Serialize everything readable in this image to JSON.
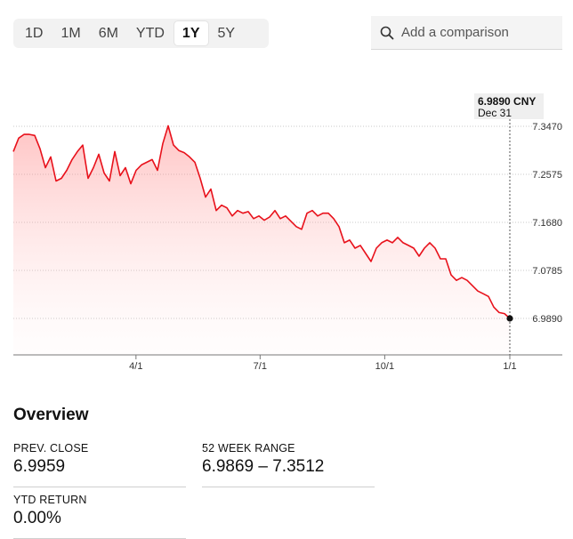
{
  "range_selector": {
    "options": [
      "1D",
      "1M",
      "6M",
      "YTD",
      "1Y",
      "5Y"
    ],
    "selected": "1Y"
  },
  "compare": {
    "placeholder": "Add a comparison",
    "icon": "search-icon"
  },
  "chart_data": {
    "type": "area",
    "title": "",
    "xlabel": "",
    "ylabel": "",
    "x_ticks": [
      "4/1",
      "7/1",
      "10/1",
      "1/1"
    ],
    "y_ticks": [
      6.989,
      7.0785,
      7.168,
      7.2575,
      7.347
    ],
    "y_tick_labels": [
      "6.9890",
      "7.0785",
      "7.1680",
      "7.2575",
      "7.3470"
    ],
    "grid": "horizontal-dotted",
    "line_color": "#e8111b",
    "fill_color": "#ff8a8a",
    "values": [
      7.3,
      7.325,
      7.332,
      7.332,
      7.33,
      7.305,
      7.27,
      7.29,
      7.245,
      7.25,
      7.265,
      7.285,
      7.3,
      7.312,
      7.25,
      7.27,
      7.295,
      7.26,
      7.245,
      7.3,
      7.255,
      7.27,
      7.24,
      7.265,
      7.275,
      7.28,
      7.285,
      7.265,
      7.315,
      7.348,
      7.312,
      7.302,
      7.298,
      7.29,
      7.28,
      7.25,
      7.215,
      7.23,
      7.19,
      7.2,
      7.195,
      7.18,
      7.19,
      7.185,
      7.188,
      7.175,
      7.18,
      7.172,
      7.178,
      7.19,
      7.175,
      7.18,
      7.17,
      7.16,
      7.155,
      7.185,
      7.19,
      7.18,
      7.185,
      7.185,
      7.175,
      7.16,
      7.13,
      7.135,
      7.12,
      7.125,
      7.11,
      7.095,
      7.12,
      7.13,
      7.135,
      7.13,
      7.14,
      7.13,
      7.125,
      7.12,
      7.105,
      7.12,
      7.13,
      7.12,
      7.1,
      7.1,
      7.07,
      7.06,
      7.065,
      7.06,
      7.05,
      7.04,
      7.035,
      7.03,
      7.01,
      7.0,
      6.998,
      6.989
    ],
    "last_value": 6.989,
    "marker": {
      "value_label": "6.9890 CNY",
      "date_label": "Dec 31"
    }
  },
  "overview": {
    "title": "Overview",
    "stats": [
      {
        "label": "PREV. CLOSE",
        "value": "6.9959"
      },
      {
        "label": "52 WEEK RANGE",
        "value": "6.9869 – 7.3512"
      },
      {
        "label": "YTD RETURN",
        "value": "0.00%"
      }
    ]
  }
}
